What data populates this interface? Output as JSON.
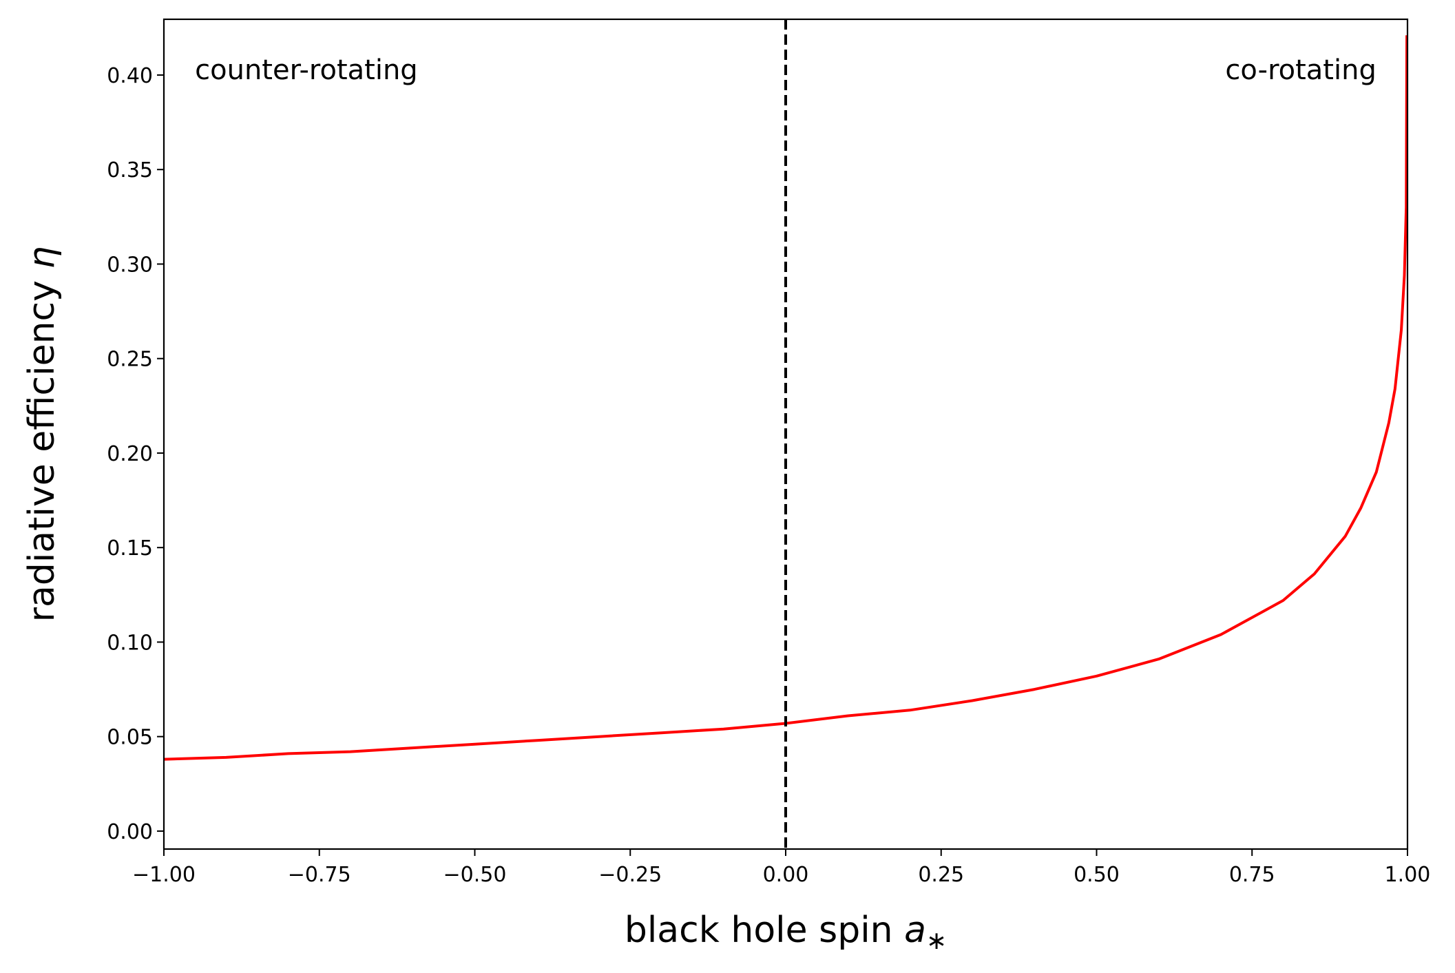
{
  "chart_data": {
    "type": "line",
    "xlabel": {
      "text": "black hole spin ",
      "var": "a",
      "sub": "∗"
    },
    "ylabel": {
      "text": "radiative efficiency ",
      "var": "η"
    },
    "xlim": [
      -1.0,
      1.0
    ],
    "ylim": [
      -0.0095,
      0.4295
    ],
    "xticks": [
      -1.0,
      -0.75,
      -0.5,
      -0.25,
      0.0,
      0.25,
      0.5,
      0.75,
      1.0
    ],
    "xtick_labels": [
      "−1.00",
      "−0.75",
      "−0.50",
      "−0.25",
      "0.00",
      "0.25",
      "0.50",
      "0.75",
      "1.00"
    ],
    "yticks": [
      0.0,
      0.05,
      0.1,
      0.15,
      0.2,
      0.25,
      0.3,
      0.35,
      0.4
    ],
    "ytick_labels": [
      "0.00",
      "0.05",
      "0.10",
      "0.15",
      "0.20",
      "0.25",
      "0.30",
      "0.35",
      "0.40"
    ],
    "series": [
      {
        "color": "#ff0000",
        "style": "solid",
        "x": [
          -1.0,
          -0.9,
          -0.8,
          -0.7,
          -0.6,
          -0.5,
          -0.4,
          -0.3,
          -0.2,
          -0.1,
          0.0,
          0.1,
          0.2,
          0.3,
          0.4,
          0.5,
          0.6,
          0.7,
          0.75,
          0.8,
          0.85,
          0.9,
          0.925,
          0.95,
          0.97,
          0.98,
          0.99,
          0.995,
          0.998,
          0.999
        ],
        "y": [
          0.038,
          0.039,
          0.041,
          0.042,
          0.044,
          0.046,
          0.048,
          0.05,
          0.052,
          0.054,
          0.057,
          0.061,
          0.064,
          0.069,
          0.075,
          0.082,
          0.091,
          0.104,
          0.113,
          0.122,
          0.136,
          0.156,
          0.171,
          0.19,
          0.216,
          0.234,
          0.265,
          0.294,
          0.33,
          0.421
        ]
      }
    ],
    "vlines": [
      {
        "x": 0.0,
        "color": "#000000",
        "style": "dashed"
      }
    ],
    "annotations": [
      {
        "text": "counter-rotating",
        "x": -0.95,
        "y": 0.405
      },
      {
        "text": "co-rotating",
        "x": 0.95,
        "y": 0.405,
        "align": "right"
      }
    ],
    "grid": false,
    "legend": false
  }
}
